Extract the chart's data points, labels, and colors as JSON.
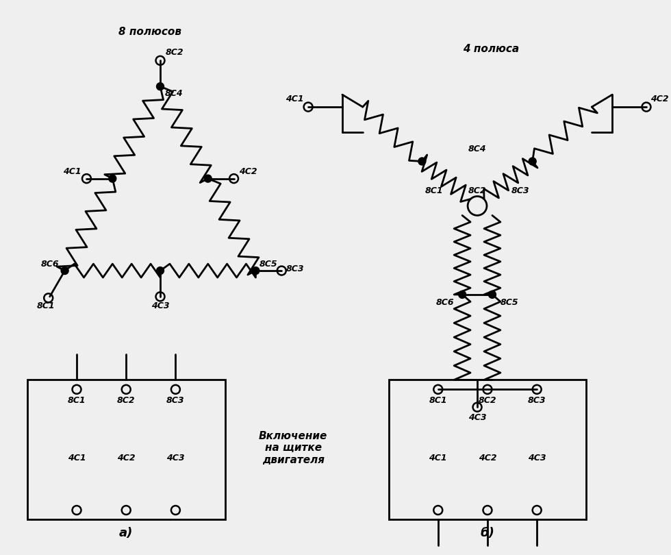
{
  "bg_color": "#efefef",
  "line_color": "#000000",
  "line_width": 2.0,
  "title_a": "8 полюсов",
  "title_b": "4 полюса",
  "label_a": "а)",
  "label_b": "б)",
  "mid_text": "Включение\nна щитке\nдвигателя",
  "font_size": 11,
  "small_font": 9
}
